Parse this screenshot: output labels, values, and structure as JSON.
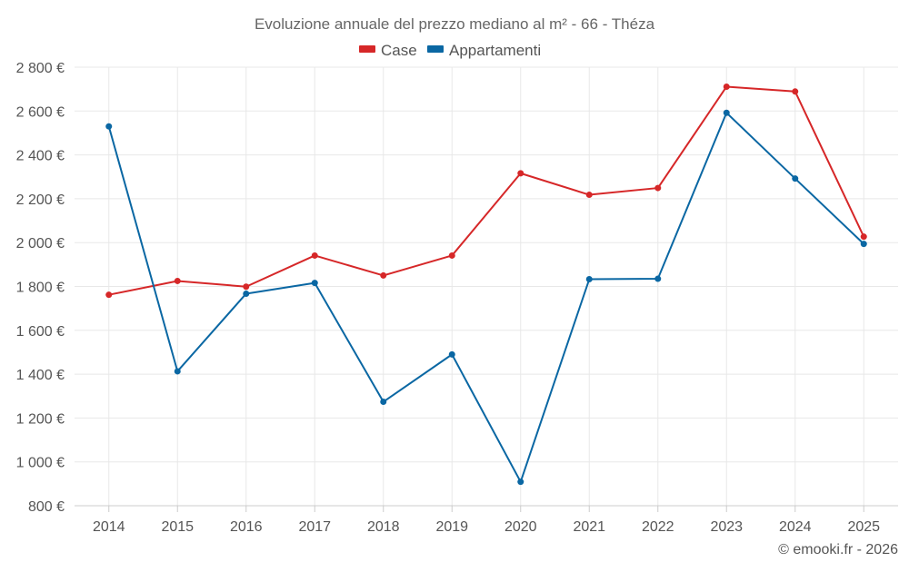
{
  "chart_data": {
    "type": "line",
    "title": "Evoluzione annuale del prezzo mediano al m² - 66 - Théza",
    "xlabel": "",
    "ylabel": "",
    "categories": [
      "2014",
      "2015",
      "2016",
      "2017",
      "2018",
      "2019",
      "2020",
      "2021",
      "2022",
      "2023",
      "2024",
      "2025"
    ],
    "ylim": [
      800,
      2800
    ],
    "yticks": [
      800,
      1000,
      1200,
      1400,
      1600,
      1800,
      2000,
      2200,
      2400,
      2600,
      2800
    ],
    "ytick_labels": [
      "800 €",
      "1 000 €",
      "1 200 €",
      "1 400 €",
      "1 600 €",
      "1 800 €",
      "2 000 €",
      "2 200 €",
      "2 400 €",
      "2 600 €",
      "2 800 €"
    ],
    "grid": true,
    "legend_position": "top-center",
    "series": [
      {
        "name": "Case",
        "color": "#d62728",
        "values": [
          1762,
          1825,
          1799,
          1941,
          1850,
          1941,
          2316,
          2218,
          2249,
          2711,
          2689,
          2027
        ]
      },
      {
        "name": "Appartamenti",
        "color": "#0a67a3",
        "values": [
          2530,
          1413,
          1767,
          1816,
          1274,
          1490,
          909,
          1833,
          1835,
          2592,
          2292,
          1994
        ]
      }
    ],
    "credit": "© emooki.fr - 2026"
  }
}
